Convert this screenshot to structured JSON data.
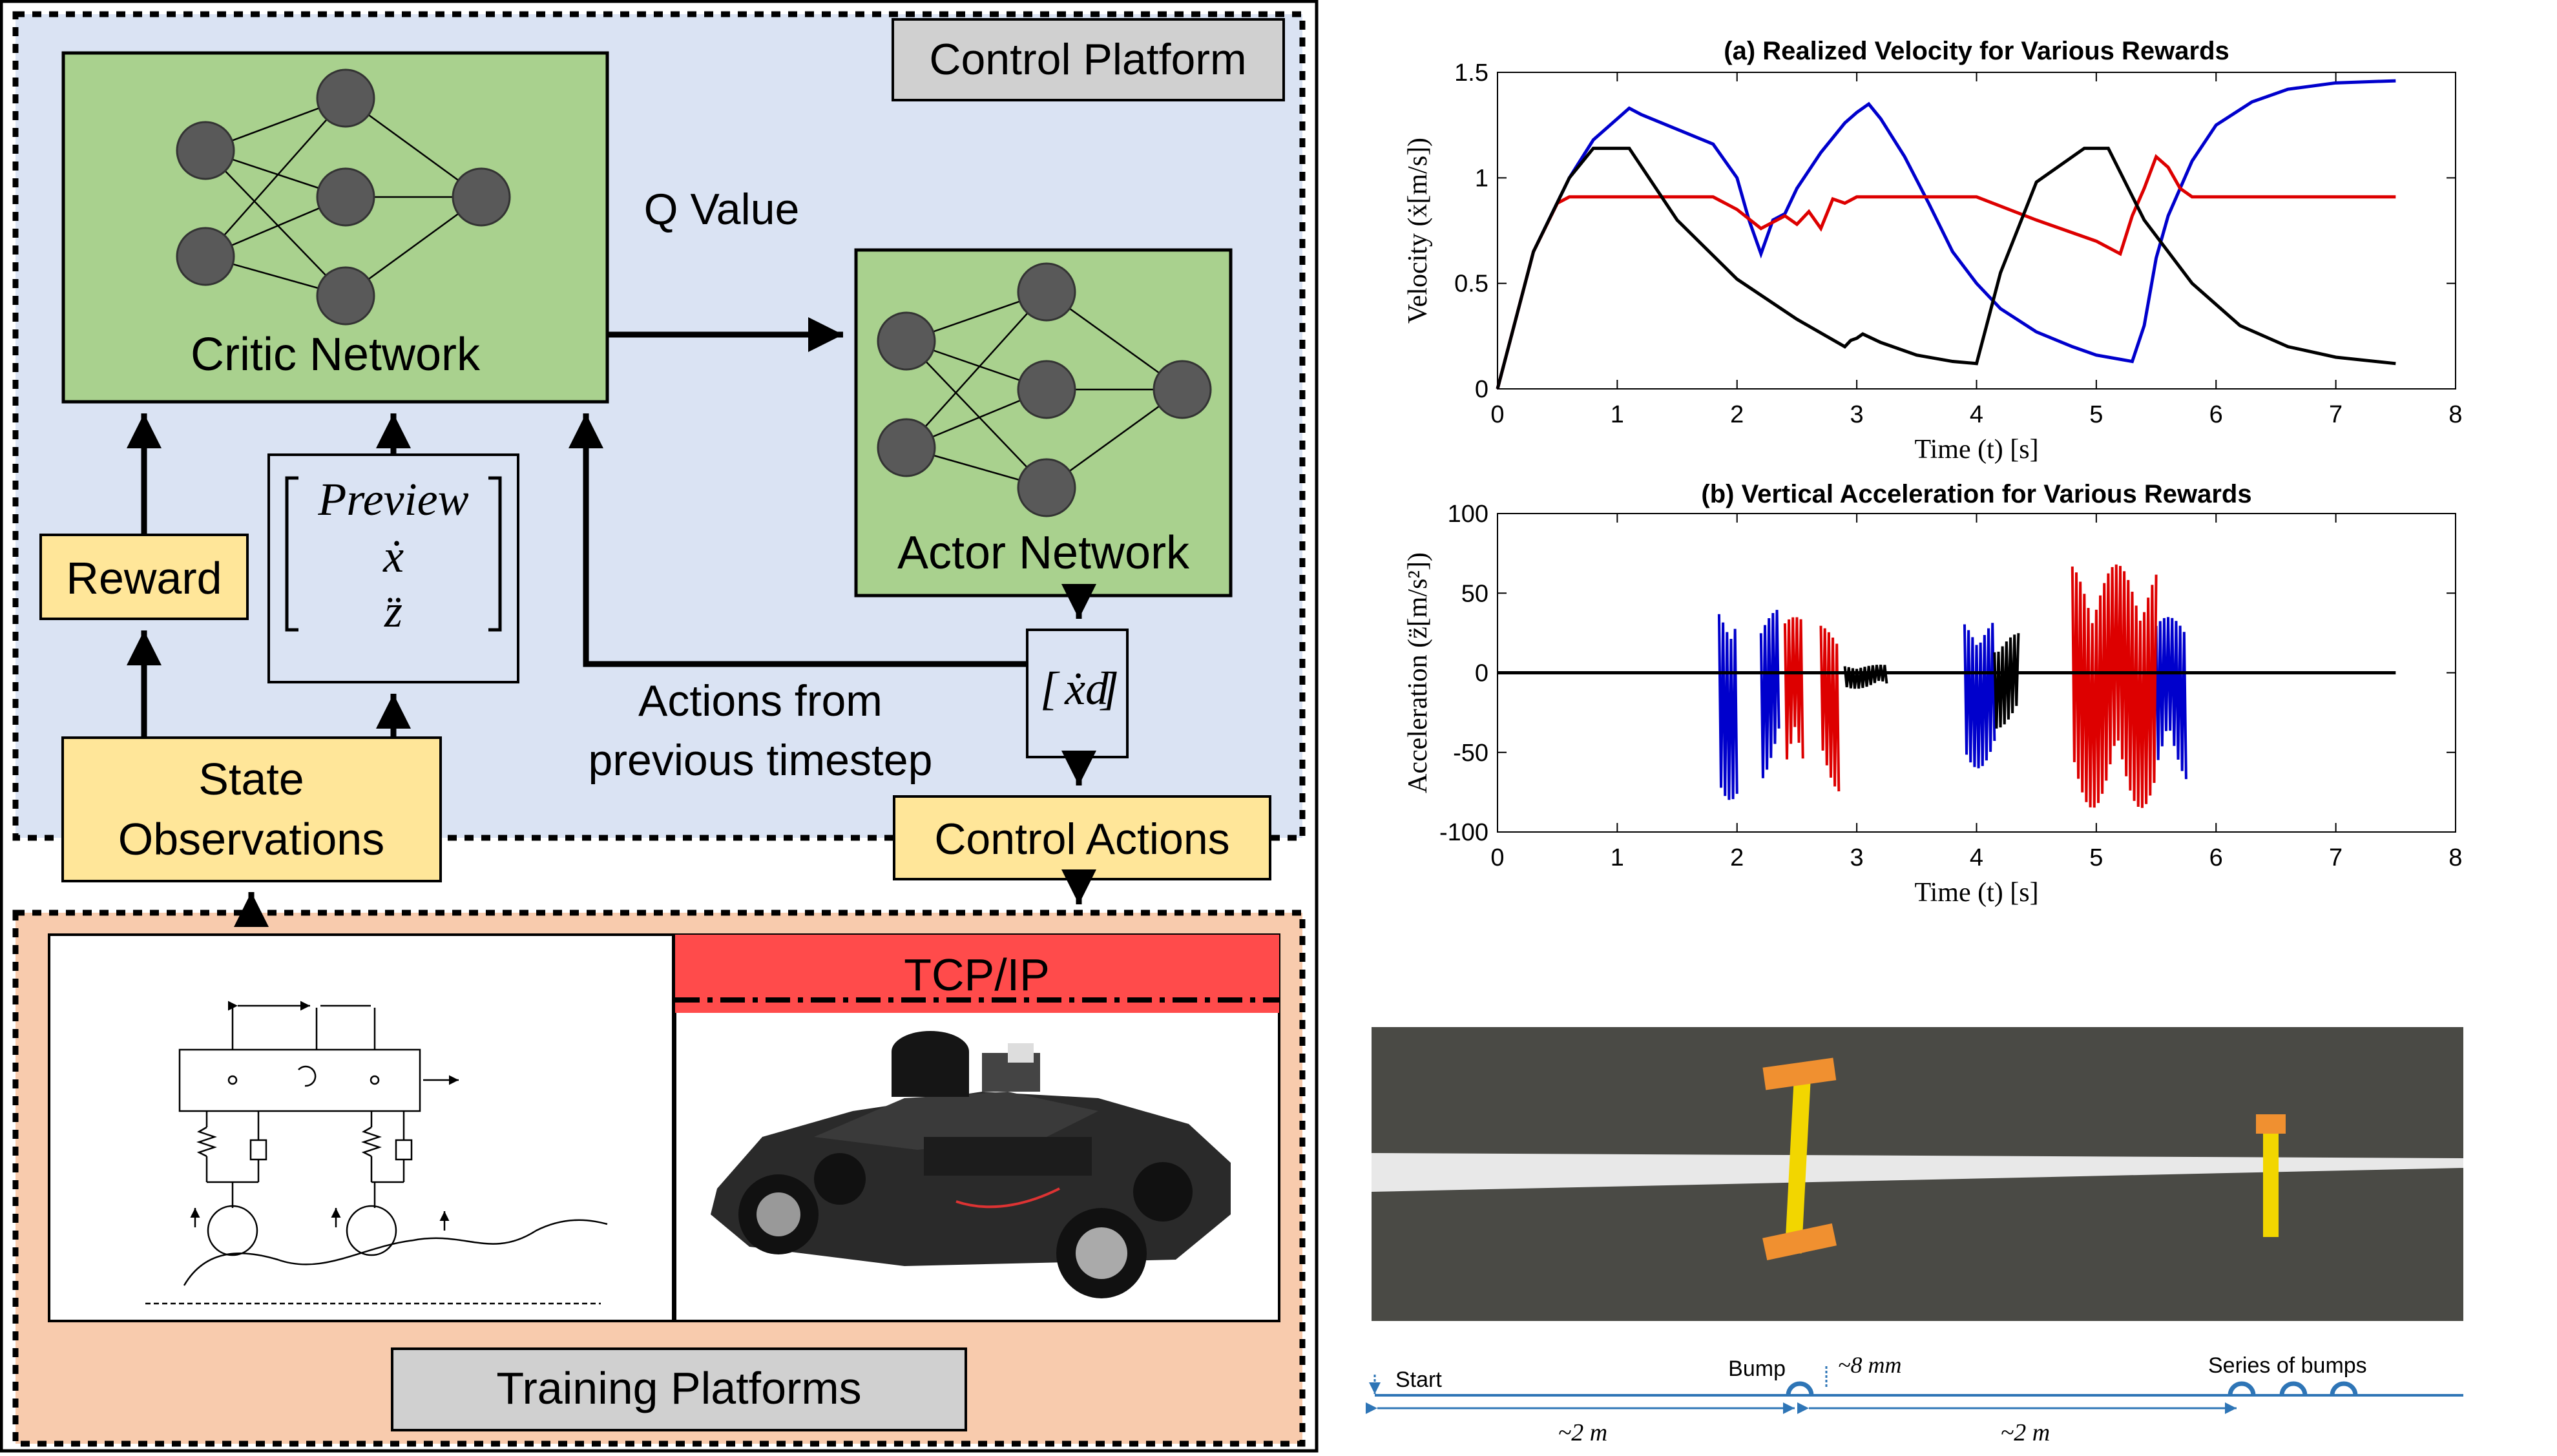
{
  "diagram": {
    "control_platform_label": "Control Platform",
    "critic_network_label": "Critic Network",
    "actor_network_label": "Actor Network",
    "q_value_label": "Q Value",
    "reward_label": "Reward",
    "state_vector": [
      "Preview",
      "ẋ",
      "z̈"
    ],
    "state_observations_label": [
      "State",
      "Observations"
    ],
    "actions_from_label": [
      "Actions from",
      "previous timestep"
    ],
    "action_vector_label": "ẋd",
    "control_actions_label": "Control Actions",
    "tcp_ip_label": "TCP/IP",
    "training_platforms_label": "Training Platforms"
  },
  "colors": {
    "control_bg": "#dae3f3",
    "network_green": "#a9d18e",
    "label_yellow": "#ffe699",
    "training_bg": "#f8cbad",
    "tcp_red": "#ff4b4b",
    "gray_label": "#d0d0d0",
    "series_blue": "#0000cc",
    "series_red": "#dd0000",
    "series_black": "#000000"
  },
  "chart_data": [
    {
      "type": "line",
      "title": "(a) Realized Velocity for Various Rewards",
      "xlabel": "Time (t) [s]",
      "ylabel": "Velocity (ẋ[m/s])",
      "xlim": [
        0,
        8
      ],
      "ylim": [
        0,
        1.5
      ],
      "xticks": [
        0,
        1,
        2,
        3,
        4,
        5,
        6,
        7,
        8
      ],
      "yticks": [
        0,
        0.5,
        1,
        1.5
      ],
      "grid": false,
      "series": [
        {
          "color": "blue",
          "x": [
            0,
            0.3,
            0.6,
            0.8,
            1.0,
            1.1,
            1.2,
            1.5,
            1.8,
            2.0,
            2.1,
            2.2,
            2.3,
            2.4,
            2.5,
            2.7,
            2.9,
            3.0,
            3.1,
            3.2,
            3.4,
            3.6,
            3.8,
            4.0,
            4.2,
            4.5,
            4.8,
            5.0,
            5.2,
            5.3,
            5.4,
            5.5,
            5.6,
            5.8,
            6.0,
            6.3,
            6.6,
            7.0,
            7.5
          ],
          "y": [
            0,
            0.65,
            1.0,
            1.18,
            1.28,
            1.33,
            1.3,
            1.23,
            1.16,
            1.0,
            0.8,
            0.64,
            0.8,
            0.83,
            0.95,
            1.12,
            1.26,
            1.31,
            1.35,
            1.28,
            1.1,
            0.88,
            0.65,
            0.5,
            0.38,
            0.27,
            0.2,
            0.16,
            0.14,
            0.13,
            0.3,
            0.62,
            0.82,
            1.08,
            1.25,
            1.36,
            1.42,
            1.45,
            1.46
          ]
        },
        {
          "color": "red",
          "x": [
            0,
            0.3,
            0.5,
            0.6,
            1.0,
            1.5,
            1.8,
            2.0,
            2.2,
            2.3,
            2.4,
            2.5,
            2.6,
            2.7,
            2.8,
            2.9,
            3.0,
            3.5,
            4.0,
            4.5,
            5.0,
            5.2,
            5.3,
            5.4,
            5.5,
            5.6,
            5.7,
            5.8,
            6.0,
            6.5,
            7.0,
            7.5
          ],
          "y": [
            0,
            0.65,
            0.88,
            0.91,
            0.91,
            0.91,
            0.91,
            0.85,
            0.76,
            0.79,
            0.82,
            0.78,
            0.84,
            0.76,
            0.9,
            0.88,
            0.91,
            0.91,
            0.91,
            0.8,
            0.7,
            0.64,
            0.82,
            0.95,
            1.1,
            1.05,
            0.95,
            0.91,
            0.91,
            0.91,
            0.91,
            0.91
          ]
        },
        {
          "color": "black",
          "x": [
            0,
            0.3,
            0.6,
            0.8,
            1.1,
            1.5,
            2.0,
            2.5,
            2.9,
            2.95,
            3.0,
            3.05,
            3.2,
            3.5,
            3.8,
            4.0,
            4.2,
            4.5,
            4.9,
            5.0,
            5.1,
            5.4,
            5.8,
            6.2,
            6.6,
            7.0,
            7.5
          ],
          "y": [
            0,
            0.65,
            1.0,
            1.14,
            1.14,
            0.8,
            0.52,
            0.33,
            0.2,
            0.23,
            0.24,
            0.26,
            0.22,
            0.16,
            0.13,
            0.12,
            0.55,
            0.98,
            1.14,
            1.14,
            1.14,
            0.8,
            0.5,
            0.3,
            0.2,
            0.15,
            0.12
          ]
        }
      ]
    },
    {
      "type": "line",
      "title": "(b) Vertical Acceleration for Various Rewards",
      "xlabel": "Time (t) [s]",
      "ylabel": "Acceleration (z̈[m/s²])",
      "xlim": [
        0,
        8
      ],
      "ylim": [
        -100,
        100
      ],
      "xticks": [
        0,
        1,
        2,
        3,
        4,
        5,
        6,
        7,
        8
      ],
      "yticks": [
        -100,
        -50,
        0,
        50,
        100
      ],
      "grid": false,
      "series": [
        {
          "color": "blue",
          "bursts": [
            [
              1.85,
              2.0,
              45,
              -80
            ],
            [
              2.2,
              2.35,
              40,
              -70
            ],
            [
              3.9,
              4.15,
              35,
              -60
            ],
            [
              5.5,
              5.75,
              35,
              -70
            ]
          ]
        },
        {
          "color": "red",
          "bursts": [
            [
              2.4,
              2.55,
              35,
              -75
            ],
            [
              2.7,
              2.85,
              30,
              -75
            ],
            [
              4.8,
              5.5,
              68,
              -85
            ]
          ]
        },
        {
          "color": "black",
          "bursts": [
            [
              2.9,
              3.25,
              5,
              -10
            ],
            [
              4.15,
              4.35,
              25,
              -35
            ]
          ]
        }
      ]
    }
  ],
  "track": {
    "start_label": "Start",
    "bump_label": "Bump",
    "bump_height_label": "~8 mm",
    "series_label": "Series of bumps",
    "dist1_label": "~2 m",
    "dist2_label": "~2 m"
  }
}
